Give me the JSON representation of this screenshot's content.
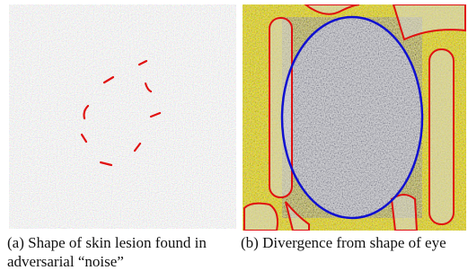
{
  "figure": {
    "panels": [
      {
        "caption": "(a) Shape of skin lesion found in adversarial “noise”"
      },
      {
        "caption": "(b) Divergence from shape of eye"
      }
    ]
  }
}
